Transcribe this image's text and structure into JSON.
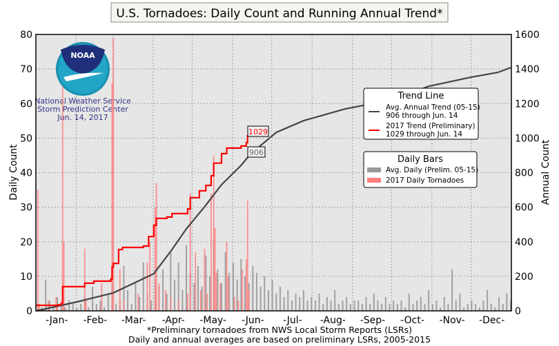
{
  "chart_data": {
    "type": "bar+line",
    "title": "U.S. Tornadoes: Daily Count and Running Annual Trend*",
    "ylabel": "Daily Count",
    "y2label": "Annual Count",
    "ylim": [
      0,
      80
    ],
    "y2lim": [
      0,
      1600
    ],
    "yticks": [
      "0",
      "10",
      "20",
      "30",
      "40",
      "50",
      "60",
      "70",
      "80"
    ],
    "y2ticks": [
      "0",
      "200",
      "400",
      "600",
      "800",
      "1000",
      "1200",
      "1400",
      "1600"
    ],
    "xticks": [
      "-Jan-",
      "-Feb-",
      "-Mar-",
      "-Apr-",
      "-May-",
      "-Jun-",
      "-Jul-",
      "-Aug-",
      "-Sep-",
      "-Oct-",
      "-Nov-",
      "-Dec-"
    ],
    "grid": true,
    "footnotes": [
      "*Preliminary tornadoes from NWS Local Storm Reports (LSRs)",
      "Daily and annual averages are based on preliminary LSRs, 2005-2015"
    ],
    "logo": {
      "text": "NOAA",
      "lines": [
        "National Weather Service",
        "Storm Prediction Center",
        "Jun. 14, 2017"
      ]
    },
    "colors": {
      "avg_trend": "#444444",
      "trend_2017": "#ff0000",
      "avg_daily": "#999999",
      "daily_2017": "#ff7f7f",
      "plot_bg": "#e6e6e6"
    },
    "legend_trend": {
      "title": "Trend Line",
      "entries": [
        {
          "line1": "Avg. Annual Trend (05-15)",
          "line2": "906 through Jun. 14"
        },
        {
          "line1": "2017 Trend (Preliminary)",
          "line2": "1029 through Jun. 14"
        }
      ],
      "placement": "right"
    },
    "legend_bars": {
      "title": "Daily Bars",
      "entries": [
        "Avg. Daily (Prelim. 05-15)",
        "2017 Daily Tornadoes"
      ],
      "placement": "right"
    },
    "annotations": {
      "trend_2017_label": "1029",
      "avg_trend_label": "906"
    },
    "avg_trend": [
      [
        "01-01",
        0
      ],
      [
        "02-01",
        52
      ],
      [
        "03-01",
        104
      ],
      [
        "04-01",
        215
      ],
      [
        "04-15",
        355
      ],
      [
        "04-26",
        475
      ],
      [
        "05-10",
        603
      ],
      [
        "05-23",
        730
      ],
      [
        "06-07",
        842
      ],
      [
        "06-14",
        906
      ],
      [
        "07-04",
        1033
      ],
      [
        "07-25",
        1101
      ],
      [
        "08-26",
        1169
      ],
      [
        "09-16",
        1200
      ],
      [
        "09-27",
        1209
      ],
      [
        "10-29",
        1300
      ],
      [
        "11-30",
        1352
      ],
      [
        "12-21",
        1380
      ],
      [
        "12-31",
        1408
      ]
    ],
    "trend_2017": [
      [
        "01-01",
        32
      ],
      [
        "01-18",
        35
      ],
      [
        "01-20",
        45
      ],
      [
        "01-21",
        140
      ],
      [
        "02-07",
        160
      ],
      [
        "02-14",
        172
      ],
      [
        "02-27",
        184
      ],
      [
        "02-28",
        255
      ],
      [
        "03-01",
        275
      ],
      [
        "03-05",
        355
      ],
      [
        "03-08",
        367
      ],
      [
        "03-24",
        375
      ],
      [
        "03-28",
        430
      ],
      [
        "04-01",
        495
      ],
      [
        "04-03",
        535
      ],
      [
        "04-11",
        543
      ],
      [
        "04-15",
        563
      ],
      [
        "04-27",
        590
      ],
      [
        "04-29",
        655
      ],
      [
        "05-06",
        695
      ],
      [
        "05-11",
        726
      ],
      [
        "05-15",
        782
      ],
      [
        "05-17",
        855
      ],
      [
        "05-23",
        910
      ],
      [
        "05-27",
        942
      ],
      [
        "06-07",
        954
      ],
      [
        "06-11",
        974
      ],
      [
        "06-12",
        1014
      ],
      [
        "06-14",
        1029
      ]
    ],
    "avg_daily_every_3_days": [
      2,
      1,
      9,
      3,
      1,
      4,
      2,
      1,
      3,
      2,
      1,
      2,
      4,
      1,
      7,
      2,
      3,
      1,
      5,
      8,
      2,
      3,
      13,
      6,
      2,
      8,
      4,
      14,
      5,
      3,
      9,
      7,
      12,
      5,
      17,
      9,
      14,
      6,
      19,
      11,
      8,
      13,
      7,
      16,
      10,
      21,
      12,
      8,
      17,
      11,
      14,
      9,
      15,
      10,
      8,
      13,
      11,
      7,
      10,
      6,
      9,
      5,
      7,
      4,
      6,
      3,
      5,
      4,
      6,
      3,
      4,
      3,
      5,
      2,
      4,
      3,
      6,
      2,
      3,
      4,
      2,
      3,
      3,
      2,
      4,
      2,
      5,
      3,
      2,
      4,
      2,
      3,
      2,
      3,
      1,
      5,
      2,
      3,
      4,
      2,
      6,
      2,
      3,
      1,
      4,
      2,
      12,
      3,
      5,
      1,
      2,
      3,
      2,
      1,
      3,
      6,
      2,
      1,
      4,
      2,
      5,
      3
    ],
    "daily_2017": [
      [
        "01-02",
        35
      ],
      [
        "01-03",
        2
      ],
      [
        "01-10",
        3
      ],
      [
        "01-16",
        4
      ],
      [
        "01-17",
        2
      ],
      [
        "01-21",
        65
      ],
      [
        "01-22",
        20
      ],
      [
        "02-07",
        18
      ],
      [
        "02-08",
        3
      ],
      [
        "02-20",
        8
      ],
      [
        "02-28",
        66
      ],
      [
        "03-01",
        79
      ],
      [
        "03-06",
        12
      ],
      [
        "03-09",
        3
      ],
      [
        "03-20",
        5
      ],
      [
        "03-27",
        14
      ],
      [
        "03-29",
        20
      ],
      [
        "04-02",
        30
      ],
      [
        "04-03",
        37
      ],
      [
        "04-05",
        8
      ],
      [
        "04-10",
        6
      ],
      [
        "04-14",
        4
      ],
      [
        "04-20",
        3
      ],
      [
        "04-27",
        5
      ],
      [
        "04-29",
        34
      ],
      [
        "05-03",
        17
      ],
      [
        "05-07",
        6
      ],
      [
        "05-10",
        18
      ],
      [
        "05-12",
        5
      ],
      [
        "05-15",
        34
      ],
      [
        "05-17",
        45
      ],
      [
        "05-18",
        24
      ],
      [
        "05-19",
        11
      ],
      [
        "05-22",
        8
      ],
      [
        "05-27",
        20
      ],
      [
        "05-28",
        10
      ],
      [
        "06-02",
        4
      ],
      [
        "06-05",
        3
      ],
      [
        "06-08",
        12
      ],
      [
        "06-11",
        15
      ],
      [
        "06-12",
        32
      ],
      [
        "06-13",
        6
      ]
    ]
  }
}
